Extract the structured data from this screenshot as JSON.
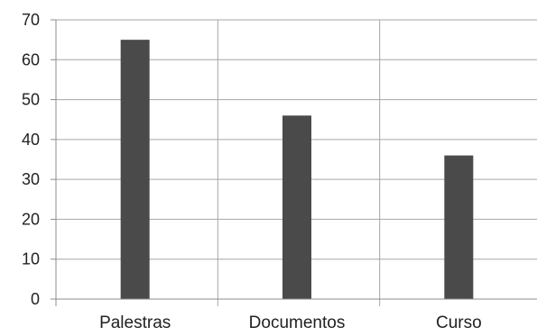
{
  "chart_data": {
    "type": "bar",
    "title": "",
    "xlabel": "",
    "ylabel": "",
    "categories": [
      "Palestras",
      "Documentos",
      "Curso"
    ],
    "series": [
      {
        "values": [
          65,
          46,
          36
        ]
      }
    ],
    "ylim": [
      0,
      70
    ],
    "yticks": [
      0,
      10,
      20,
      30,
      40,
      50,
      60,
      70
    ],
    "grid": {
      "horizontal": true,
      "vertical": true
    },
    "colors": {
      "bar": "#4a4a4a",
      "grid": "#a6a6a6",
      "axis": "#8c8c8c",
      "text": "#222222"
    }
  }
}
